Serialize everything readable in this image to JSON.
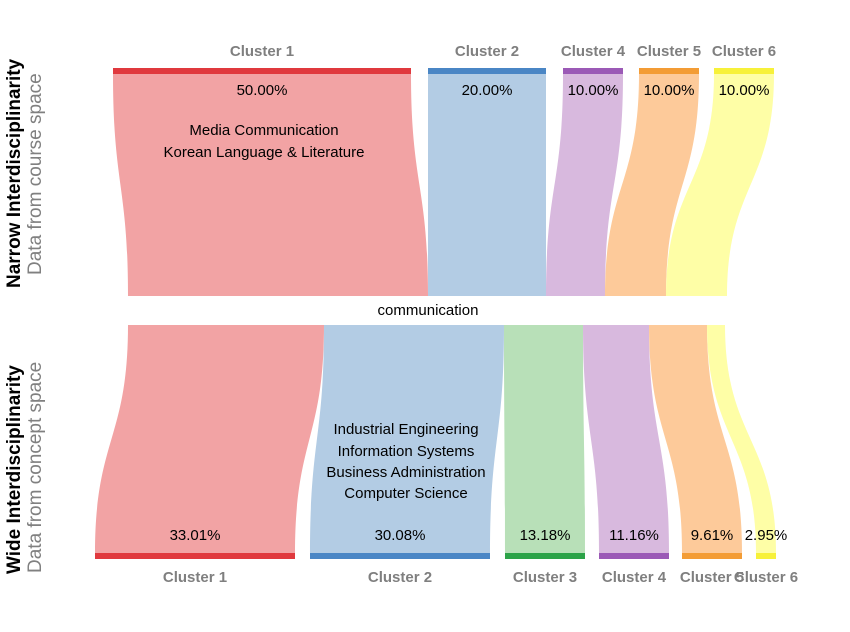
{
  "top_panel": {
    "title": "Narrow Interdisciplinarity",
    "subtitle": "Data from course space",
    "clusters": [
      {
        "label": "Cluster 1",
        "percent": "50.00%",
        "value": 50.0,
        "color": "#e0393e",
        "fill": "#f2a3a4"
      },
      {
        "label": "Cluster 2",
        "percent": "20.00%",
        "value": 20.0,
        "color": "#4a86c5",
        "fill": "#b3cce4"
      },
      {
        "label": "Cluster 4",
        "percent": "10.00%",
        "value": 10.0,
        "color": "#9b59b6",
        "fill": "#d8b9de"
      },
      {
        "label": "Cluster 5",
        "percent": "10.00%",
        "value": 10.0,
        "color": "#f39c35",
        "fill": "#fdca9a"
      },
      {
        "label": "Cluster 6",
        "percent": "10.00%",
        "value": 10.0,
        "color": "#f7f13a",
        "fill": "#fefea6"
      }
    ],
    "majors": [
      "Media Communication",
      "Korean Language & Literature"
    ]
  },
  "center_label": "communication",
  "bottom_panel": {
    "title": "Wide Interdisciplinarity",
    "subtitle": "Data from concept space",
    "clusters": [
      {
        "label": "Cluster 1",
        "percent": "33.01%",
        "value": 33.01,
        "color": "#e0393e",
        "fill": "#f2a3a4"
      },
      {
        "label": "Cluster 2",
        "percent": "30.08%",
        "value": 30.08,
        "color": "#4a86c5",
        "fill": "#b3cce4"
      },
      {
        "label": "Cluster 3",
        "percent": "13.18%",
        "value": 13.18,
        "color": "#2ca348",
        "fill": "#b8e0b8"
      },
      {
        "label": "Cluster 4",
        "percent": "11.16%",
        "value": 11.16,
        "color": "#9b59b6",
        "fill": "#d8b9de"
      },
      {
        "label": "Cluster 5",
        "percent": "9.61%",
        "value": 9.61,
        "color": "#f39c35",
        "fill": "#fdca9a"
      },
      {
        "label": "Cluster 6",
        "percent": "2.95%",
        "value": 2.95,
        "color": "#f7f13a",
        "fill": "#fefea6"
      }
    ],
    "majors": [
      "Industrial Engineering",
      "Information Systems",
      "Business Administration",
      "Computer Science"
    ]
  }
}
